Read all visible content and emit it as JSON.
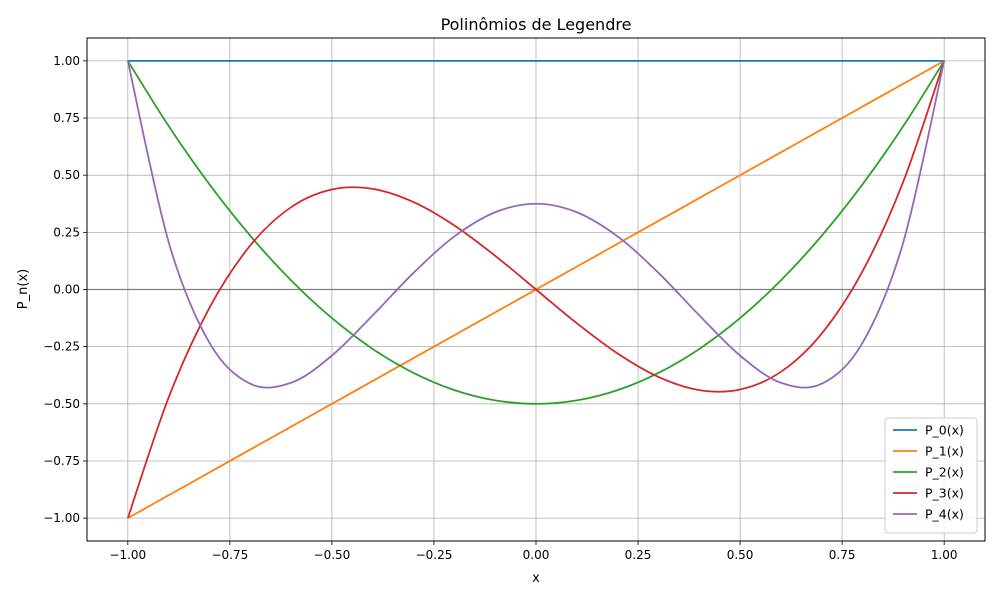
{
  "chart_data": {
    "type": "line",
    "title": "Polinômios de Legendre",
    "xlabel": "x",
    "ylabel": "P_n(x)",
    "xlim": [
      -1.1,
      1.1
    ],
    "ylim": [
      -1.1,
      1.1
    ],
    "xticks": [
      -1.0,
      -0.75,
      -0.5,
      -0.25,
      0.0,
      0.25,
      0.5,
      0.75,
      1.0
    ],
    "xtick_labels": [
      "−1.00",
      "−0.75",
      "−0.50",
      "−0.25",
      "0.00",
      "0.25",
      "0.50",
      "0.75",
      "1.00"
    ],
    "yticks": [
      -1.0,
      -0.75,
      -0.5,
      -0.25,
      0.0,
      0.25,
      0.5,
      0.75,
      1.0
    ],
    "ytick_labels": [
      "−1.00",
      "−0.75",
      "−0.50",
      "−0.25",
      "0.00",
      "0.25",
      "0.50",
      "0.75",
      "1.00"
    ],
    "grid": true,
    "zero_line": {
      "y": 0,
      "color": "#808080"
    },
    "legend_position": "lower-right",
    "x": [
      -1.0,
      -0.9,
      -0.8,
      -0.7,
      -0.6,
      -0.5,
      -0.4,
      -0.3,
      -0.2,
      -0.1,
      0.0,
      0.1,
      0.2,
      0.3,
      0.4,
      0.5,
      0.6,
      0.7,
      0.8,
      0.9,
      1.0
    ],
    "series": [
      {
        "name": "P_0(x)",
        "color": "#1f77b4",
        "values": [
          1,
          1,
          1,
          1,
          1,
          1,
          1,
          1,
          1,
          1,
          1,
          1,
          1,
          1,
          1,
          1,
          1,
          1,
          1,
          1,
          1
        ]
      },
      {
        "name": "P_1(x)",
        "color": "#ff7f0e",
        "values": [
          -1.0,
          -0.9,
          -0.8,
          -0.7,
          -0.6,
          -0.5,
          -0.4,
          -0.3,
          -0.2,
          -0.1,
          0.0,
          0.1,
          0.2,
          0.3,
          0.4,
          0.5,
          0.6,
          0.7,
          0.8,
          0.9,
          1.0
        ]
      },
      {
        "name": "P_2(x)",
        "color": "#2ca02c",
        "values": [
          1.0,
          0.715,
          0.46,
          0.235,
          0.04,
          -0.125,
          -0.26,
          -0.365,
          -0.44,
          -0.485,
          -0.5,
          -0.485,
          -0.44,
          -0.365,
          -0.26,
          -0.125,
          0.04,
          0.235,
          0.46,
          0.715,
          1.0
        ]
      },
      {
        "name": "P_3(x)",
        "color": "#d62728",
        "values": [
          -1.0,
          -0.4725,
          -0.08,
          0.1925,
          0.36,
          0.4375,
          0.44,
          0.3825,
          0.28,
          0.1475,
          0.0,
          -0.1475,
          -0.28,
          -0.3825,
          -0.44,
          -0.4375,
          -0.36,
          -0.1925,
          0.08,
          0.4725,
          1.0
        ]
      },
      {
        "name": "P_4(x)",
        "color": "#9467bd",
        "values": [
          1.0,
          0.2079,
          -0.233,
          -0.4121,
          -0.408,
          -0.2891,
          -0.113,
          0.0729,
          0.232,
          0.3379,
          0.375,
          0.3379,
          0.232,
          0.0729,
          -0.113,
          -0.2891,
          -0.408,
          -0.4121,
          -0.233,
          0.2079,
          1.0
        ]
      }
    ]
  }
}
